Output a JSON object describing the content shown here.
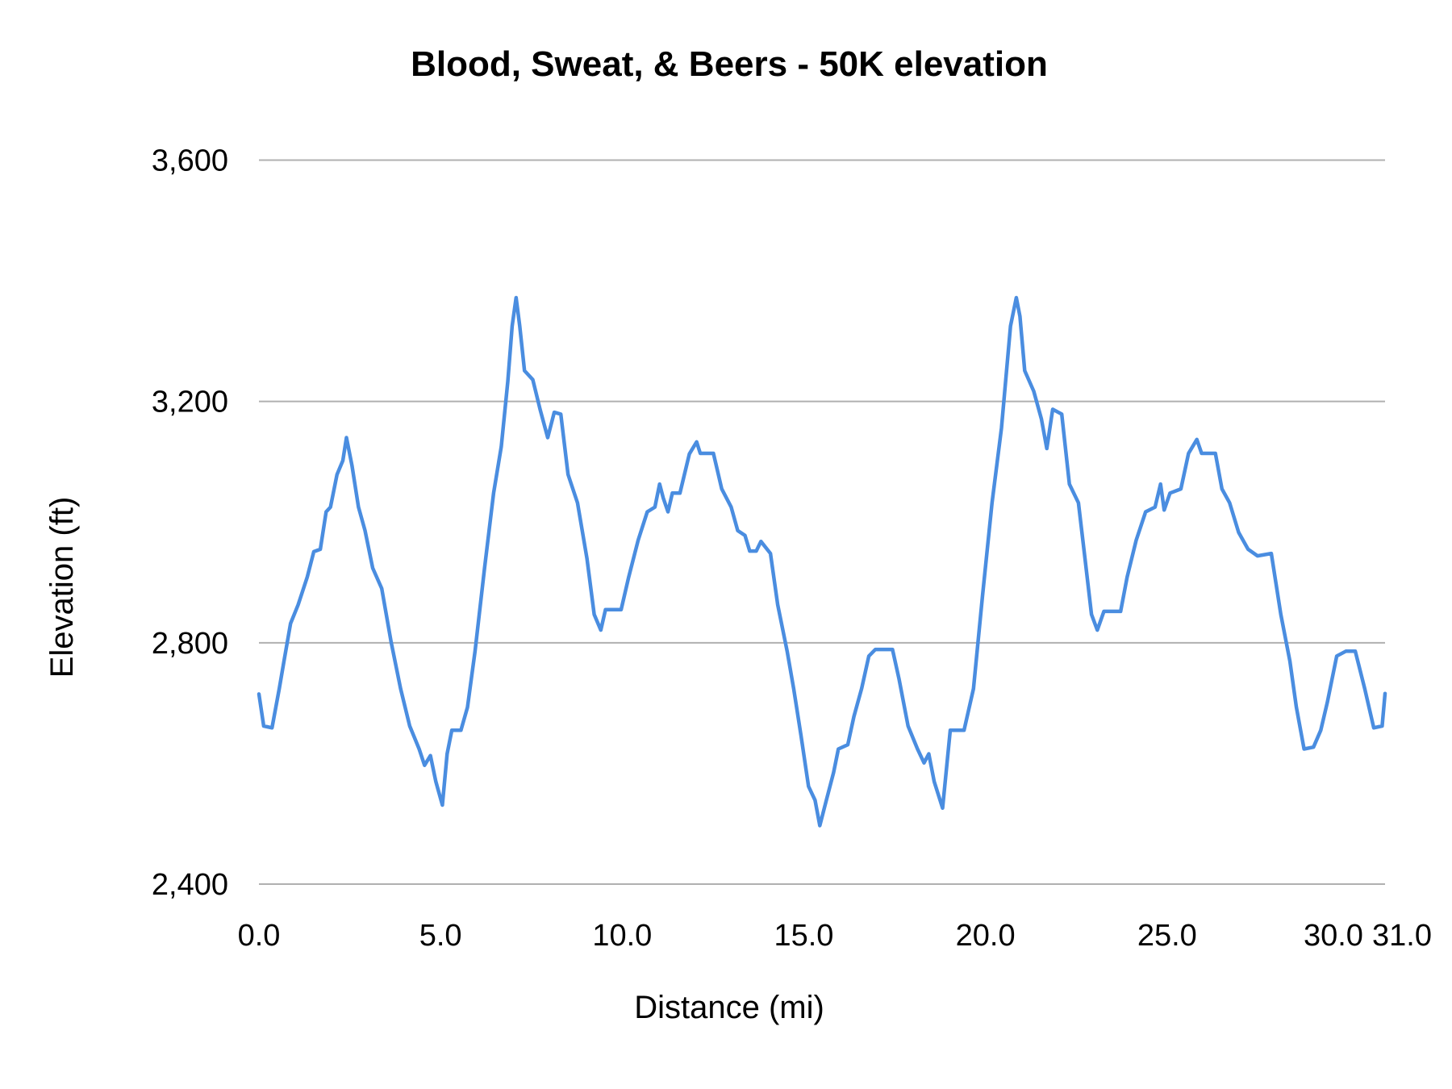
{
  "chart_data": {
    "type": "line",
    "title": "Blood, Sweat, & Beers  - 50K elevation",
    "xlabel": "Distance (mi)",
    "ylabel": "Elevation (ft)",
    "xlim": [
      0,
      31
    ],
    "ylim": [
      2400,
      3600
    ],
    "x_ticks": [
      0,
      5,
      10,
      15,
      20,
      25,
      30,
      31
    ],
    "x_tick_labels": [
      "0.0",
      "5.0",
      "10.0",
      "15.0",
      "20.0",
      "25.0",
      "30.0",
      "31.0"
    ],
    "y_ticks": [
      2400,
      2800,
      3200,
      3600
    ],
    "y_tick_labels": [
      "2,400",
      "2,800",
      "3,200",
      "3,600"
    ],
    "grid": "horizontal",
    "legend": "none",
    "color": "#4a8de0",
    "series": [
      {
        "x": [
          0,
          0.13,
          0.36,
          0.56,
          0.69,
          0.87,
          1.08,
          1.33,
          1.51,
          1.69,
          1.85,
          1.97,
          2.15,
          2.31,
          2.41,
          2.56,
          2.74,
          2.92,
          3.13,
          3.38,
          3.64,
          3.9,
          4.15,
          4.41,
          4.56,
          4.72,
          4.87,
          5.05,
          5.18,
          5.31,
          5.56,
          5.74,
          5.95,
          6.21,
          6.46,
          6.67,
          6.85,
          6.97,
          7.08,
          7.18,
          7.31,
          7.54,
          7.74,
          7.95,
          8.13,
          8.31,
          8.51,
          8.77,
          9.03,
          9.23,
          9.41,
          9.54,
          9.97,
          10.18,
          10.44,
          10.69,
          10.9,
          11.03,
          11.13,
          11.26,
          11.38,
          11.59,
          11.85,
          12.05,
          12.15,
          12.51,
          12.74,
          13.0,
          13.18,
          13.38,
          13.51,
          13.69,
          13.82,
          14.08,
          14.28,
          14.54,
          14.72,
          14.92,
          15.13,
          15.31,
          15.44,
          15.62,
          15.82,
          15.95,
          16.21,
          16.38,
          16.59,
          16.79,
          16.97,
          17.44,
          17.62,
          17.87,
          18.13,
          18.31,
          18.44,
          18.59,
          18.82,
          19.03,
          19.41,
          19.67,
          19.92,
          20.18,
          20.44,
          20.69,
          20.85,
          20.95,
          21.08,
          21.33,
          21.54,
          21.69,
          21.85,
          22.1,
          22.31,
          22.56,
          22.74,
          22.92,
          23.08,
          23.26,
          23.72,
          23.9,
          24.15,
          24.41,
          24.67,
          24.82,
          24.92,
          25.08,
          25.38,
          25.59,
          25.82,
          25.95,
          26.33,
          26.51,
          26.72,
          26.97,
          27.23,
          27.49,
          27.87,
          28.13,
          28.38,
          28.56,
          28.77,
          29.03,
          29.23,
          29.41,
          29.67,
          29.92,
          30.18,
          30.44,
          30.69,
          30.92,
          31.0
        ],
        "y": [
          2715,
          2662,
          2659,
          2724,
          2770,
          2832,
          2863,
          2909,
          2951,
          2955,
          3017,
          3025,
          3079,
          3102,
          3140,
          3094,
          3025,
          2986,
          2924,
          2890,
          2801,
          2724,
          2662,
          2624,
          2597,
          2613,
          2570,
          2531,
          2616,
          2655,
          2655,
          2693,
          2786,
          2924,
          3048,
          3125,
          3233,
          3325,
          3372,
          3325,
          3251,
          3236,
          3187,
          3140,
          3182,
          3179,
          3079,
          3032,
          2940,
          2847,
          2821,
          2855,
          2855,
          2909,
          2970,
          3017,
          3025,
          3063,
          3040,
          3017,
          3048,
          3048,
          3113,
          3133,
          3114,
          3114,
          3055,
          3025,
          2986,
          2978,
          2952,
          2952,
          2968,
          2948,
          2863,
          2786,
          2724,
          2647,
          2562,
          2539,
          2497,
          2539,
          2585,
          2624,
          2631,
          2678,
          2724,
          2778,
          2789,
          2789,
          2740,
          2662,
          2624,
          2601,
          2616,
          2570,
          2526,
          2655,
          2655,
          2724,
          2878,
          3032,
          3156,
          3325,
          3372,
          3341,
          3251,
          3217,
          3171,
          3122,
          3187,
          3179,
          3063,
          3032,
          2940,
          2847,
          2821,
          2852,
          2852,
          2909,
          2970,
          3017,
          3025,
          3063,
          3020,
          3048,
          3055,
          3114,
          3137,
          3114,
          3114,
          3055,
          3032,
          2983,
          2955,
          2944,
          2948,
          2847,
          2770,
          2693,
          2624,
          2627,
          2655,
          2701,
          2778,
          2786,
          2786,
          2724,
          2659,
          2662,
          2716
        ]
      }
    ]
  }
}
